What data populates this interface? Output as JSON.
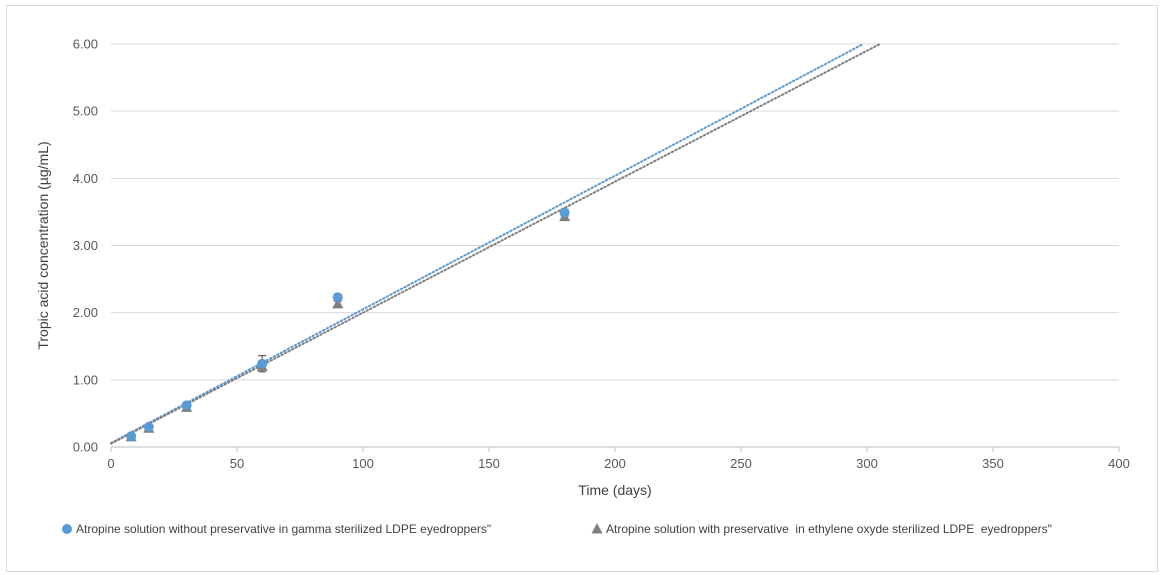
{
  "chart_data": {
    "type": "scatter",
    "title": "",
    "xlabel": "Time (days)",
    "ylabel": "Tropic acid concentration (µg/mL)",
    "xlim": [
      0,
      400
    ],
    "ylim": [
      0,
      6
    ],
    "x_ticks": [
      0,
      50,
      100,
      150,
      200,
      250,
      300,
      350,
      400
    ],
    "x_tick_labels": [
      "0",
      "50",
      "100",
      "150",
      "200",
      "250",
      "300",
      "350",
      "400"
    ],
    "y_ticks": [
      0,
      1,
      2,
      3,
      4,
      5,
      6
    ],
    "y_tick_labels": [
      "0.00",
      "1.00",
      "2.00",
      "3.00",
      "4.00",
      "5.00",
      "6.00"
    ],
    "grid": "horizontal",
    "legend_position": "bottom",
    "series": [
      {
        "name": "Atropine solution without preservative in gamma sterilized LDPE eyedroppers\"",
        "marker": "circle",
        "color": "#5b9bd5",
        "x": [
          8,
          15,
          30,
          60,
          90,
          180
        ],
        "y": [
          0.16,
          0.3,
          0.62,
          1.24,
          2.23,
          3.49
        ],
        "error": [
          0.02,
          0.03,
          0.03,
          0.12,
          0.04,
          0.05
        ],
        "trendline": {
          "type": "linear",
          "style": "dotted",
          "slope": 0.0199,
          "intercept": 0.06
        }
      },
      {
        "name": "Atropine solution with preservative  in ethylene oxyde sterilized LDPE  eyedroppers\"",
        "marker": "triangle",
        "color": "#7f7f7f",
        "x": [
          8,
          15,
          30,
          60,
          90,
          180
        ],
        "y": [
          0.15,
          0.28,
          0.59,
          1.2,
          2.13,
          3.43
        ],
        "error": [
          0.02,
          0.02,
          0.03,
          0.04,
          0.04,
          0.04
        ],
        "trendline": {
          "type": "linear",
          "style": "dotted",
          "slope": 0.0195,
          "intercept": 0.05
        }
      }
    ]
  }
}
